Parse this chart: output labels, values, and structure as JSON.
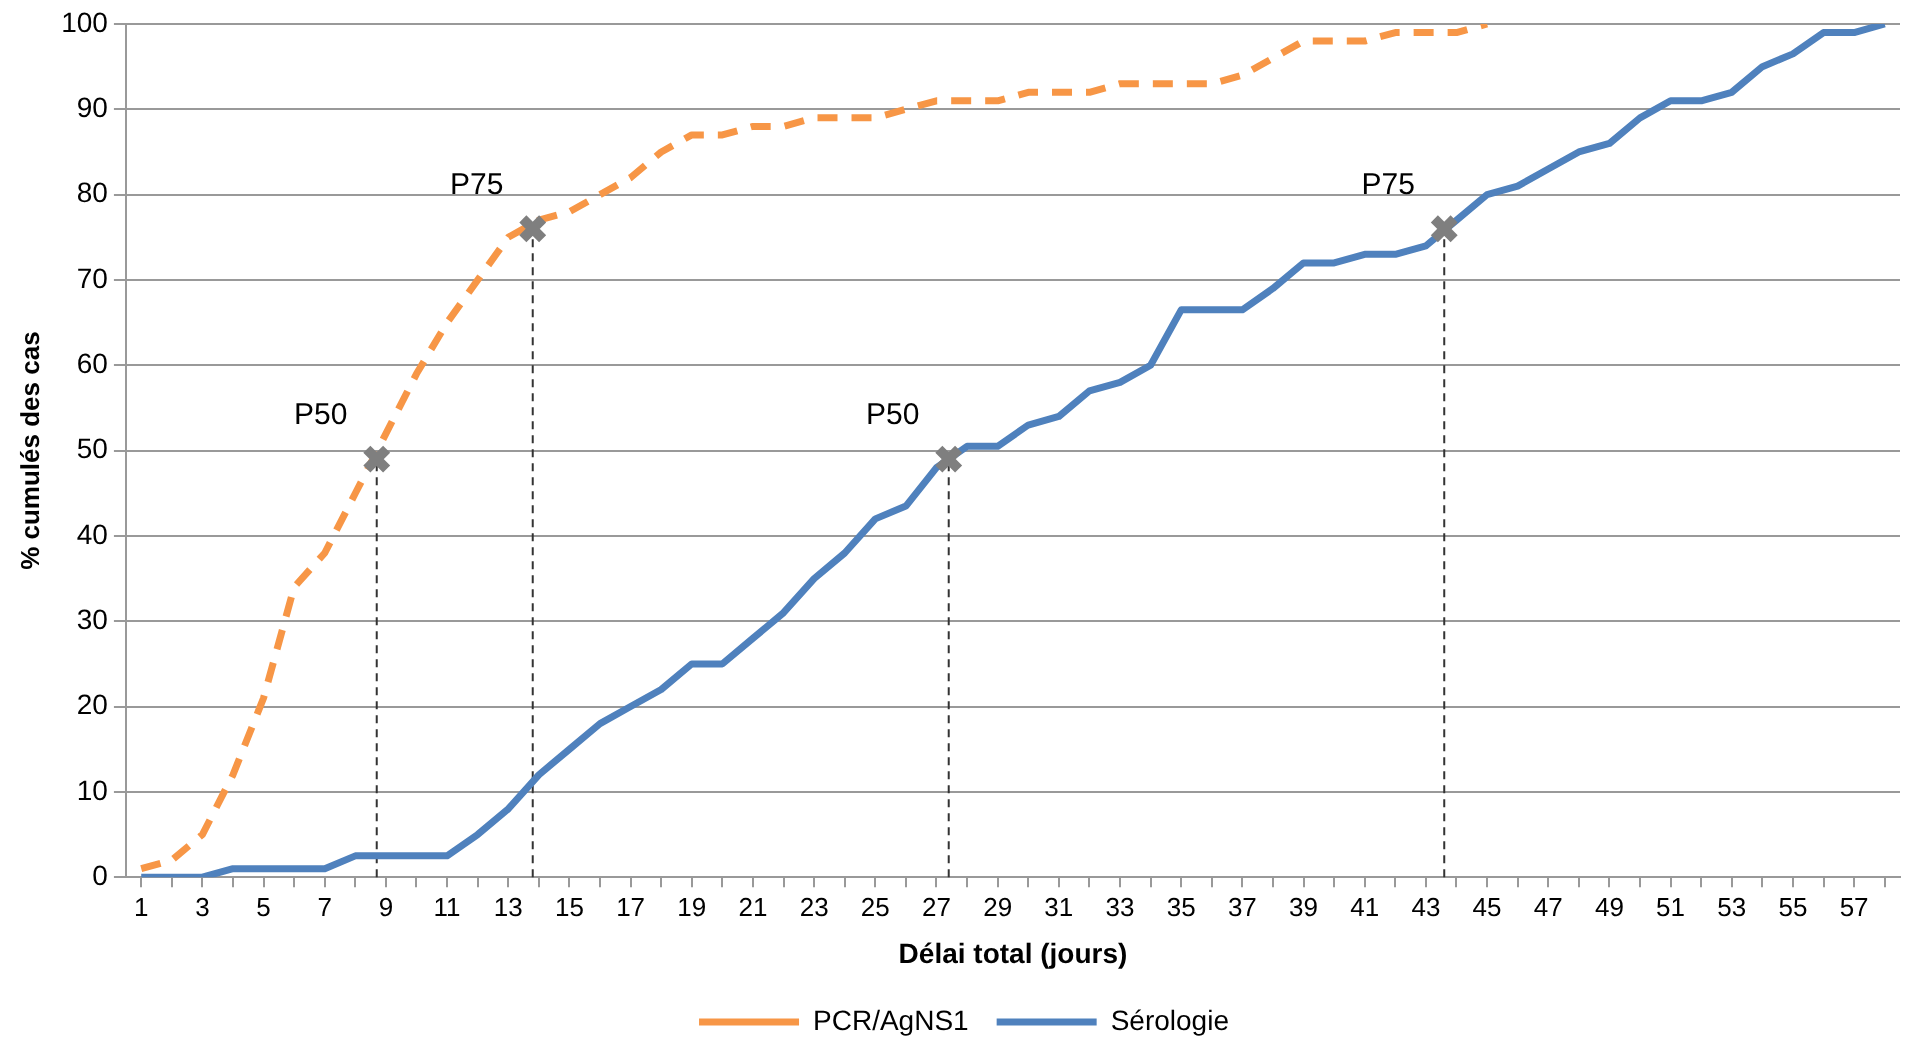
{
  "chart_data": {
    "type": "line",
    "xlabel": "Délai total (jours)",
    "ylabel": "% cumulés des cas",
    "x": [
      1,
      2,
      3,
      4,
      5,
      6,
      7,
      8,
      9,
      10,
      11,
      12,
      13,
      14,
      15,
      16,
      17,
      18,
      19,
      20,
      21,
      22,
      23,
      24,
      25,
      26,
      27,
      28,
      29,
      30,
      31,
      32,
      33,
      34,
      35,
      36,
      37,
      38,
      39,
      40,
      41,
      42,
      43,
      44,
      45,
      46,
      47,
      48,
      49,
      50,
      51,
      52,
      53,
      54,
      55,
      56,
      57,
      58
    ],
    "series": [
      {
        "name": "PCR/AgNS1",
        "color": "#f79646",
        "line_style": "dashed",
        "marker": "none",
        "values": [
          1,
          2,
          5,
          12,
          21,
          34,
          38,
          45,
          52,
          59,
          65,
          70,
          75,
          77,
          78,
          80,
          82,
          85,
          87,
          87,
          88,
          88,
          89,
          89,
          89,
          90,
          91,
          91,
          91,
          92,
          92,
          92,
          93,
          93,
          93,
          93,
          94,
          96,
          98,
          98,
          98,
          99,
          99,
          99,
          100,
          null,
          null,
          null,
          null,
          null,
          null,
          null,
          null,
          null,
          null,
          null,
          null,
          null
        ]
      },
      {
        "name": "Sérologie",
        "color": "#4f81bd",
        "line_style": "solid",
        "marker": "none",
        "values": [
          0,
          0,
          0,
          1,
          1,
          1,
          1,
          2.5,
          2.5,
          2.5,
          2.5,
          5,
          8,
          12,
          15,
          18,
          20,
          22,
          25,
          25,
          28,
          31,
          35,
          38,
          42,
          43.5,
          48,
          50.5,
          50.5,
          53,
          54,
          57,
          58,
          60,
          66.5,
          66.5,
          66.5,
          69,
          72,
          72,
          73,
          73,
          74,
          77,
          80,
          81,
          83,
          85,
          86,
          89,
          91,
          91,
          92,
          95,
          96.5,
          99,
          99,
          100
        ]
      },
      {
        "type": "scatter",
        "color": "#7f7f7f",
        "marker": "cross",
        "x": [
          8.7,
          13.8,
          27.4,
          43.6
        ],
        "values": [
          49,
          76,
          49,
          76
        ],
        "errors": [
          [
            0,
            49
          ],
          [
            0,
            76
          ],
          [
            0,
            49
          ],
          [
            0,
            76
          ]
        ]
      }
    ],
    "annotations": [
      {
        "text": "P50",
        "x": 8.7,
        "y": 49
      },
      {
        "text": "P75",
        "x": 13.8,
        "y": 76
      },
      {
        "text": "P50",
        "x": 27.4,
        "y": 49
      },
      {
        "text": "P75",
        "x": 43.6,
        "y": 76
      }
    ],
    "xlim": [
      0.5,
      58.5
    ],
    "xticks": [
      1,
      {
        "value": 2,
        "label": null
      },
      3,
      {
        "value": 4,
        "label": null
      },
      5,
      {
        "value": 6,
        "label": null
      },
      7,
      {
        "value": 8,
        "label": null
      },
      9,
      {
        "value": 10,
        "label": null
      },
      11,
      {
        "value": 12,
        "label": null
      },
      13,
      {
        "value": 14,
        "label": null
      },
      15,
      {
        "value": 16,
        "label": null
      },
      17,
      {
        "value": 18,
        "label": null
      },
      19,
      {
        "value": 20,
        "label": null
      },
      21,
      {
        "value": 22,
        "label": null
      },
      23,
      {
        "value": 24,
        "label": null
      },
      25,
      {
        "value": 26,
        "label": null
      },
      27,
      {
        "value": 28,
        "label": null
      },
      29,
      {
        "value": 30,
        "label": null
      },
      31,
      {
        "value": 32,
        "label": null
      },
      33,
      {
        "value": 34,
        "label": null
      },
      35,
      {
        "value": 36,
        "label": null
      },
      37,
      {
        "value": 38,
        "label": null
      },
      39,
      {
        "value": 40,
        "label": null
      },
      41,
      {
        "value": 42,
        "label": null
      },
      43,
      {
        "value": 44,
        "label": null
      },
      45,
      {
        "value": 46,
        "label": null
      },
      47,
      {
        "value": 48,
        "label": null
      },
      49,
      {
        "value": 50,
        "label": null
      },
      51,
      {
        "value": 52,
        "label": null
      },
      53,
      {
        "value": 54,
        "label": null
      },
      55,
      {
        "value": 56,
        "label": null
      },
      57,
      {
        "value": 58,
        "label": null
      }
    ],
    "ylim": [
      0,
      100
    ],
    "yticks": [
      0,
      10,
      20,
      30,
      40,
      50,
      60,
      70,
      80,
      90,
      100
    ],
    "grid": "y",
    "legend": "bottom"
  }
}
